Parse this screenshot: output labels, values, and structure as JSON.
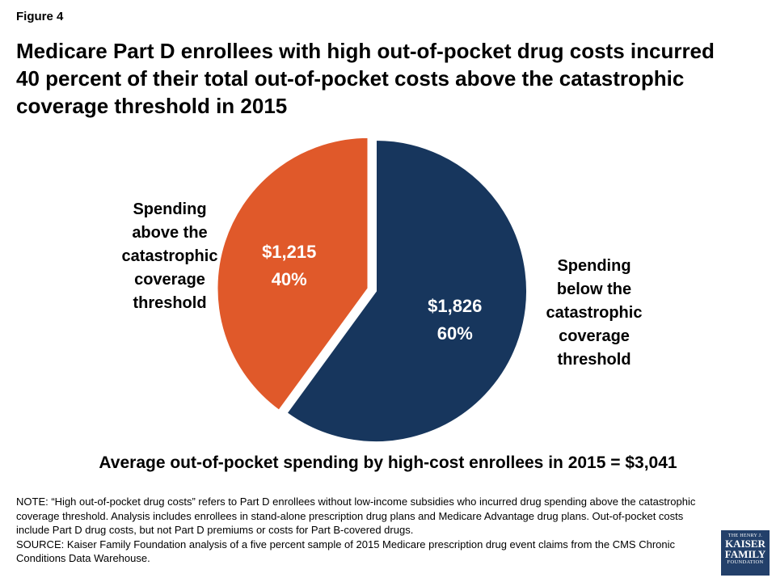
{
  "figure_label": "Figure 4",
  "title": "Medicare Part D enrollees with high out-of-pocket drug costs incurred 40 percent of their total out-of-pocket costs above the catastrophic coverage threshold in 2015",
  "chart_data": {
    "type": "pie",
    "slices": [
      {
        "label": "Spending below the catastrophic coverage threshold",
        "value": 1826,
        "value_label": "$1,826",
        "percent": 60,
        "percent_label": "60%",
        "color": "#17365d",
        "exploded": false
      },
      {
        "label": "Spending above the catastrophic coverage threshold",
        "value": 1215,
        "value_label": "$1,215",
        "percent": 40,
        "percent_label": "40%",
        "color": "#e0592a",
        "exploded": true
      }
    ]
  },
  "left_label_lines": [
    "Spending",
    "above the",
    "catastrophic",
    "coverage",
    "threshold"
  ],
  "right_label_lines": [
    "Spending",
    "below the",
    "catastrophic",
    "coverage",
    "threshold"
  ],
  "summary": "Average out-of-pocket spending by high-cost enrollees in 2015 = $3,041",
  "note": "NOTE: “High out-of-pocket drug costs” refers to Part D enrollees without low-income subsidies who incurred drug spending above the catastrophic coverage threshold. Analysis includes enrollees in stand-alone prescription drug plans and Medicare Advantage drug plans. Out-of-pocket costs include Part D drug costs, but not Part D premiums or costs for Part B-covered drugs.",
  "source": "SOURCE: Kaiser Family Foundation analysis of a five percent sample of 2015 Medicare prescription drug event claims from the CMS Chronic Conditions Data Warehouse.",
  "logo": {
    "top": "THE HENRY J.",
    "line1": "KAISER",
    "line2": "FAMILY",
    "bottom": "FOUNDATION"
  }
}
